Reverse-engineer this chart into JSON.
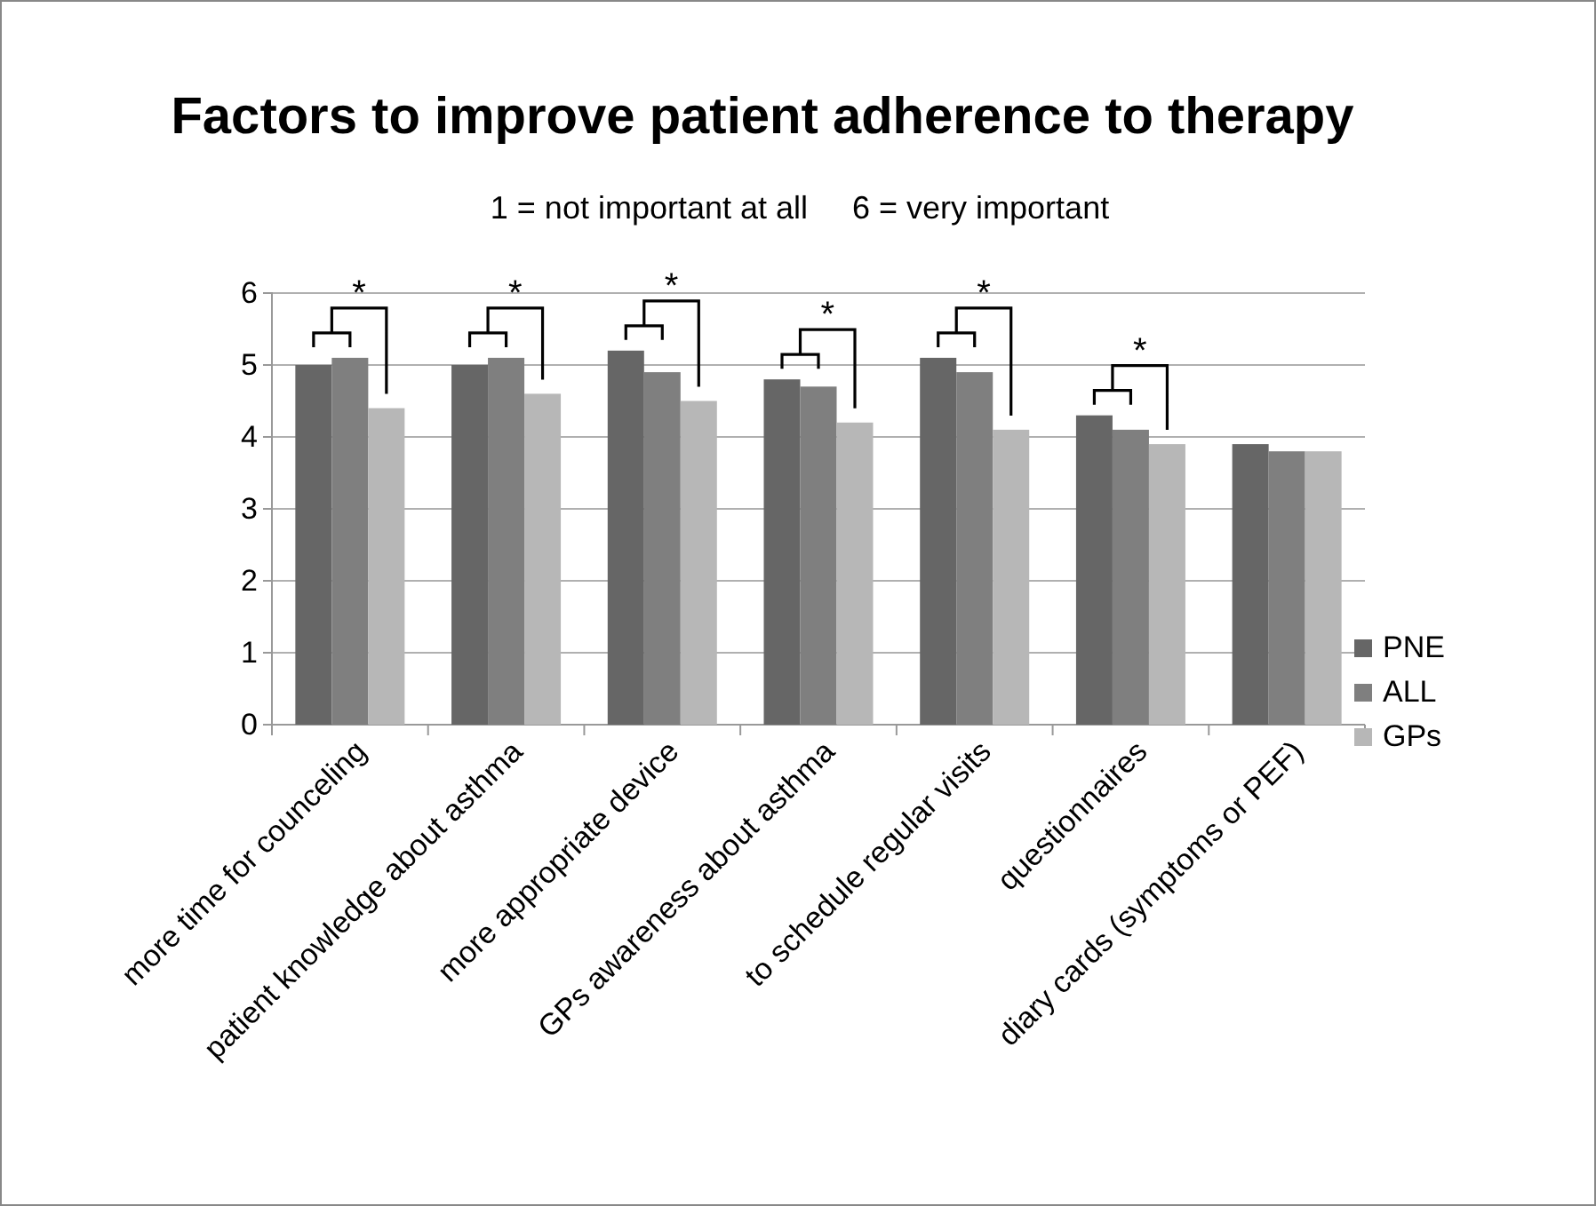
{
  "chart_data": {
    "type": "bar",
    "title": "Factors to improve patient adherence to therapy",
    "subtitle": "1 = not important at all     6 = very important",
    "categories": [
      "more time for counceling",
      "patient knowledge about asthma",
      "more appropriate device",
      "GPs awareness about asthma",
      "to schedule regular visits",
      "questionnaires",
      "diary cards (symptoms or PEF)"
    ],
    "series": [
      {
        "name": "PNE",
        "color": "#666666",
        "values": [
          5.0,
          5.0,
          5.2,
          4.8,
          5.1,
          4.3,
          3.9
        ]
      },
      {
        "name": "ALL",
        "color": "#7f7f7f",
        "values": [
          5.1,
          5.1,
          4.9,
          4.7,
          4.9,
          4.1,
          3.8
        ]
      },
      {
        "name": "GPs",
        "color": "#b7b7b7",
        "values": [
          4.4,
          4.6,
          4.5,
          4.2,
          4.1,
          3.9,
          3.8
        ]
      }
    ],
    "ylim": [
      0,
      6
    ],
    "yticks": [
      0,
      1,
      2,
      3,
      4,
      5,
      6
    ],
    "grid": "y",
    "legend": "right",
    "annotations": [
      "*",
      "*",
      "*",
      "*",
      "*",
      "*"
    ]
  }
}
